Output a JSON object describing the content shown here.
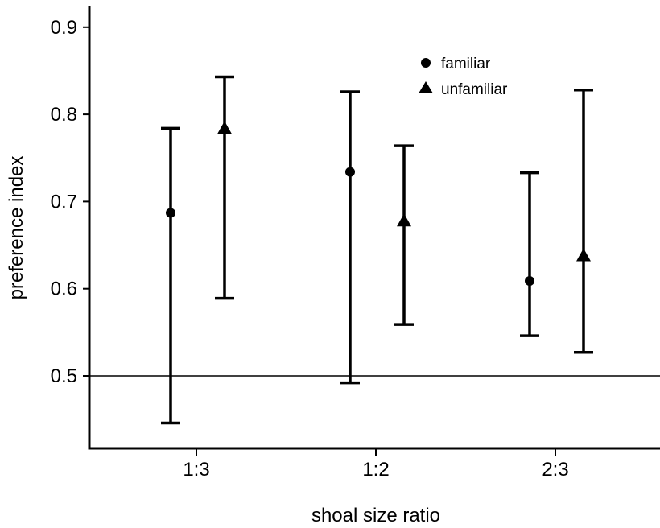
{
  "chart_data": {
    "type": "scatter",
    "title": "",
    "xlabel": "shoal size ratio",
    "ylabel": "preference index",
    "categories": [
      "1:3",
      "1:2",
      "2:3"
    ],
    "ylim": [
      0.41,
      0.93
    ],
    "yticks": [
      "0.5",
      "0.6",
      "0.7",
      "0.8",
      "0.9"
    ],
    "reference_line": 0.5,
    "grid": false,
    "legend_position": "top-center",
    "series": [
      {
        "name": "familiar",
        "marker": "circle",
        "values": [
          0.687,
          0.734,
          0.609
        ],
        "lower": [
          0.446,
          0.492,
          0.546
        ],
        "upper": [
          0.784,
          0.826,
          0.733
        ]
      },
      {
        "name": "unfamiliar",
        "marker": "triangle",
        "values": [
          0.784,
          0.678,
          0.638
        ],
        "lower": [
          0.589,
          0.559,
          0.527
        ],
        "upper": [
          0.843,
          0.764,
          0.828
        ]
      }
    ]
  }
}
